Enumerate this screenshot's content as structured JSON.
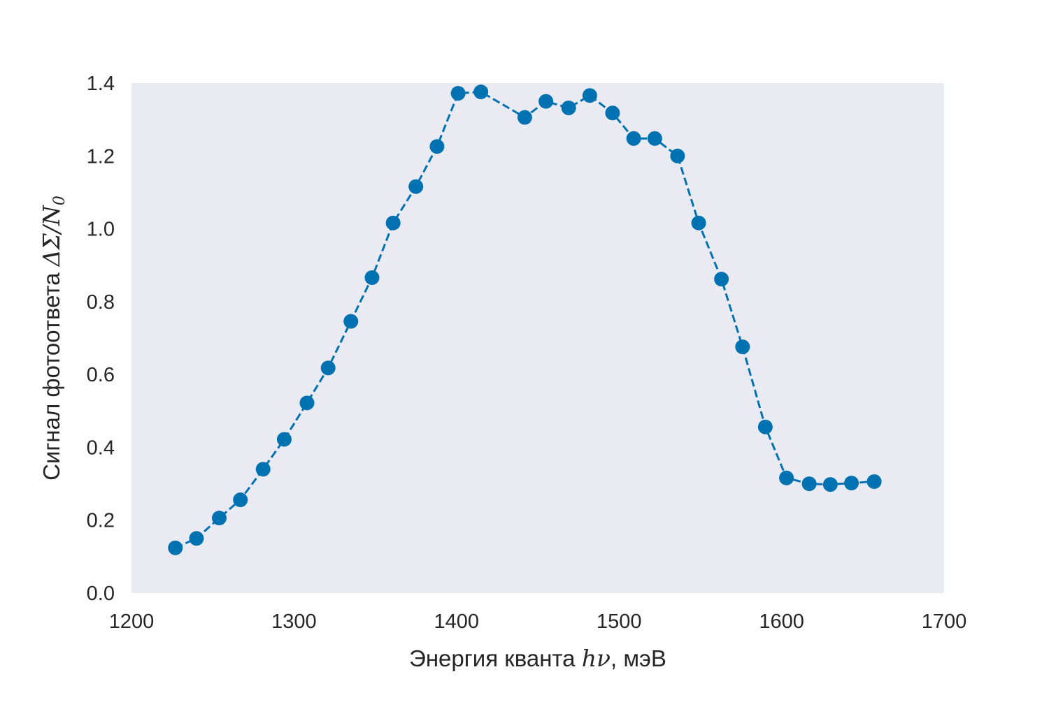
{
  "chart_data": {
    "type": "line",
    "title": "",
    "xlabel": {
      "prefix": "Энергия кванта ",
      "math": "hν",
      "suffix": ", мэВ"
    },
    "ylabel": {
      "prefix": "Сигнал фотоответа ",
      "math": "ΔΣ/N",
      "math_sub": "0"
    },
    "xlim": [
      1200,
      1700
    ],
    "ylim": [
      0.0,
      1.4
    ],
    "xticks": [
      "1200",
      "1300",
      "1400",
      "1500",
      "1600",
      "1700"
    ],
    "yticks": [
      "0.0",
      "0.2",
      "0.4",
      "0.6",
      "0.8",
      "1.0",
      "1.2",
      "1.4"
    ],
    "grid": false,
    "background": "#eaeaf2",
    "series": [
      {
        "color": "#0072b2",
        "line_style": "dashed",
        "marker": "circle",
        "x": [
          1227,
          1240,
          1254,
          1267,
          1281,
          1294,
          1308,
          1321,
          1335,
          1348,
          1361,
          1375,
          1388,
          1401,
          1415,
          1442,
          1455,
          1469,
          1482,
          1496,
          1509,
          1522,
          1536,
          1549,
          1563,
          1576,
          1590,
          1603,
          1617,
          1630,
          1643,
          1657
        ],
        "y": [
          0.124,
          0.15,
          0.206,
          0.256,
          0.34,
          0.422,
          0.522,
          0.618,
          0.746,
          0.866,
          1.016,
          1.116,
          1.226,
          1.372,
          1.376,
          1.306,
          1.35,
          1.332,
          1.366,
          1.318,
          1.248,
          1.248,
          1.2,
          1.016,
          0.862,
          0.676,
          0.456,
          0.316,
          0.3,
          0.298,
          0.302,
          0.306
        ]
      }
    ]
  }
}
